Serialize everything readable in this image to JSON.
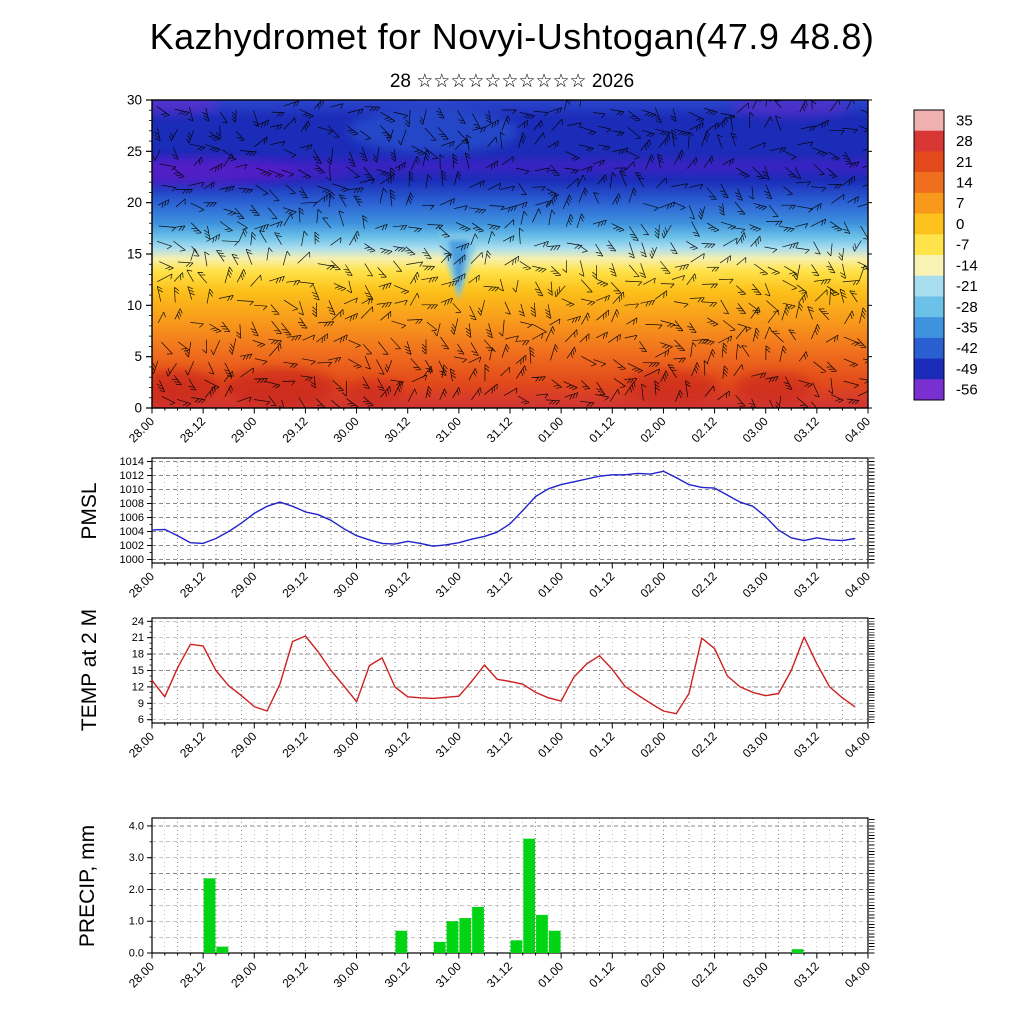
{
  "header": {
    "title": "Kazhydromet for Novyi-Ushtogan(47.9 48.8)",
    "subtitle": "28 ☆☆☆☆☆☆☆☆☆☆ 2026"
  },
  "chart_data": {
    "time_axis": {
      "tick_labels": [
        "28.00",
        "28.12",
        "29.00",
        "29.12",
        "30.00",
        "30.12",
        "31.00",
        "31.12",
        "01.00",
        "01.12",
        "02.00",
        "02.12",
        "03.00",
        "03.12",
        "04.00"
      ],
      "tick_interval_hours": 12,
      "minor_interval_hours": 3,
      "total_hours": 168
    },
    "cross_section": {
      "type": "heatmap",
      "description": "time-height temperature cross-section with wind-barb overlay",
      "ylim": [
        0,
        30
      ],
      "yticks": [
        0,
        5,
        10,
        15,
        20,
        25,
        30
      ],
      "colorbar": {
        "tick_labels": [
          "35",
          "28",
          "21",
          "14",
          "7",
          "0",
          "-7",
          "-14",
          "-21",
          "-28",
          "-35",
          "-42",
          "-49",
          "-56"
        ],
        "band_colors": [
          "#efb0b0",
          "#d93636",
          "#e2491b",
          "#f06f1e",
          "#f8991c",
          "#fcc11a",
          "#ffe34a",
          "#f8f2b4",
          "#a8ddf0",
          "#6cc1e8",
          "#3e92de",
          "#2a5fd2",
          "#1b2cb8",
          "#7a30d0"
        ]
      },
      "vertical_profile_stops": [
        {
          "offset": 0.0,
          "color": "#2c46cc"
        },
        {
          "offset": 0.06,
          "color": "#1b2cb8"
        },
        {
          "offset": 0.17,
          "color": "#1b2cb8"
        },
        {
          "offset": 0.215,
          "color": "#3a22c2"
        },
        {
          "offset": 0.26,
          "color": "#1b2cb8"
        },
        {
          "offset": 0.33,
          "color": "#2a5fd2"
        },
        {
          "offset": 0.4,
          "color": "#3e92de"
        },
        {
          "offset": 0.445,
          "color": "#6cc1e8"
        },
        {
          "offset": 0.48,
          "color": "#a8ddf0"
        },
        {
          "offset": 0.515,
          "color": "#f6f0ae"
        },
        {
          "offset": 0.555,
          "color": "#ffe34a"
        },
        {
          "offset": 0.62,
          "color": "#fcc11a"
        },
        {
          "offset": 0.72,
          "color": "#f8991c"
        },
        {
          "offset": 0.82,
          "color": "#f06f1e"
        },
        {
          "offset": 0.92,
          "color": "#e2491b"
        },
        {
          "offset": 1.0,
          "color": "#d03434"
        }
      ],
      "features": [
        {
          "name": "stratosphere-purple-band",
          "shape": "ellipse",
          "t_hours": 8,
          "height_km": 23,
          "rx_hours": 26,
          "ry_km": 1.3,
          "color": "#5a1ec8",
          "opacity": 0.8
        },
        {
          "name": "stratosphere-purple-band-ext",
          "shape": "ellipse",
          "t_hours": 36,
          "height_km": 22.8,
          "rx_hours": 12,
          "ry_km": 0.7,
          "color": "#5a1ec8",
          "opacity": 0.45
        },
        {
          "name": "purple-top-left",
          "shape": "ellipse",
          "t_hours": 5,
          "height_km": 29.6,
          "rx_hours": 11,
          "ry_km": 1.0,
          "color": "#6a28cc",
          "opacity": 0.6
        },
        {
          "name": "purple-top-right",
          "shape": "ellipse",
          "t_hours": 150,
          "height_km": 29.3,
          "rx_hours": 14,
          "ry_km": 1.0,
          "color": "#6a28cc",
          "opacity": 0.55
        },
        {
          "name": "bright-blue-upper",
          "shape": "ellipse",
          "t_hours": 66,
          "height_km": 27,
          "rx_hours": 20,
          "ry_km": 2.2,
          "color": "#2f62d8",
          "opacity": 0.5
        },
        {
          "name": "warm-surface-1",
          "shape": "ellipse",
          "t_hours": 6,
          "height_km": 2,
          "rx_hours": 10,
          "ry_km": 1.7,
          "color": "#c9251a",
          "opacity": 0.7
        },
        {
          "name": "warm-surface-2",
          "shape": "ellipse",
          "t_hours": 30,
          "height_km": 2,
          "rx_hours": 13,
          "ry_km": 1.9,
          "color": "#c9251a",
          "opacity": 0.7
        },
        {
          "name": "warm-surface-3",
          "shape": "ellipse",
          "t_hours": 52,
          "height_km": 1.5,
          "rx_hours": 7,
          "ry_km": 1.2,
          "color": "#c9251a",
          "opacity": 0.55
        },
        {
          "name": "warm-surface-4",
          "shape": "ellipse",
          "t_hours": 122,
          "height_km": 2,
          "rx_hours": 11,
          "ry_km": 1.7,
          "color": "#c9251a",
          "opacity": 0.6
        },
        {
          "name": "warm-surface-5",
          "shape": "ellipse",
          "t_hours": 146,
          "height_km": 2,
          "rx_hours": 9,
          "ry_km": 1.5,
          "color": "#c9251a",
          "opacity": 0.6
        },
        {
          "name": "cold-dip",
          "shape": "wedge",
          "t_hours": 72,
          "top_km": 17,
          "bottom_km": 10.5,
          "half_width_hours": 5,
          "color": "#7fc8ea",
          "opacity": 0.85
        },
        {
          "name": "cold-dip-core",
          "shape": "wedge",
          "t_hours": 72,
          "top_km": 16.3,
          "bottom_km": 11.3,
          "half_width_hours": 2.4,
          "color": "#3e92de",
          "opacity": 0.8
        }
      ]
    },
    "pmsl": {
      "type": "line",
      "label": "PMSL",
      "color": "#2222cc",
      "ylim": [
        999.5,
        1014.5
      ],
      "yticks": [
        1000,
        1002,
        1004,
        1006,
        1008,
        1010,
        1012,
        1014
      ],
      "step_hours": 3,
      "start_hour": 0,
      "values": [
        1004.2,
        1004.3,
        1003.4,
        1002.4,
        1002.3,
        1003.0,
        1004.0,
        1005.2,
        1006.6,
        1007.6,
        1008.2,
        1007.6,
        1006.8,
        1006.4,
        1005.6,
        1004.4,
        1003.4,
        1002.8,
        1002.3,
        1002.2,
        1002.6,
        1002.3,
        1001.9,
        1002.1,
        1002.4,
        1002.9,
        1003.3,
        1003.9,
        1005.1,
        1007.0,
        1009.0,
        1010.1,
        1010.7,
        1011.1,
        1011.5,
        1011.9,
        1012.1,
        1012.1,
        1012.3,
        1012.2,
        1012.6,
        1011.7,
        1010.7,
        1010.3,
        1010.2,
        1009.2,
        1008.2,
        1007.6,
        1006.1,
        1004.2,
        1003.1,
        1002.7,
        1003.1,
        1002.8,
        1002.7,
        1003.0
      ]
    },
    "temp2m": {
      "type": "line",
      "label": "TEMP at 2 M",
      "color": "#cc2020",
      "ylim": [
        5.4,
        24.6
      ],
      "yticks": [
        6,
        9,
        12,
        15,
        18,
        21,
        24
      ],
      "step_hours": 3,
      "start_hour": 0,
      "values": [
        13.2,
        10.2,
        15.5,
        19.8,
        19.5,
        15.0,
        12.2,
        10.4,
        8.4,
        7.6,
        12.5,
        20.3,
        21.3,
        18.4,
        15.0,
        12.2,
        9.3,
        15.9,
        17.3,
        12.0,
        10.2,
        10.0,
        9.9,
        10.1,
        10.3,
        13.0,
        16.0,
        13.4,
        13.0,
        12.5,
        11.0,
        10.0,
        9.4,
        13.8,
        16.2,
        17.7,
        15.2,
        12.1,
        10.5,
        9.0,
        7.6,
        7.1,
        10.8,
        20.9,
        19.0,
        14.0,
        12.0,
        11.0,
        10.4,
        10.8,
        15.0,
        21.1,
        16.2,
        12.0,
        10.0,
        8.3
      ]
    },
    "precip": {
      "type": "bar",
      "label": "PRECIP, mm",
      "color": "#00d414",
      "ylim": [
        0,
        4.25
      ],
      "yticks": [
        0,
        1,
        2,
        3,
        4
      ],
      "ytick_decimals": 1,
      "step_hours": 3,
      "start_hour": 0,
      "values": [
        0,
        0,
        0,
        0,
        2.35,
        0.2,
        0,
        0,
        0,
        0,
        0,
        0,
        0,
        0,
        0,
        0,
        0,
        0,
        0,
        0.7,
        0,
        0,
        0.35,
        1.0,
        1.1,
        1.45,
        0,
        0,
        0.4,
        3.6,
        1.2,
        0.7,
        0,
        0,
        0,
        0,
        0,
        0,
        0,
        0,
        0,
        0,
        0,
        0,
        0,
        0,
        0,
        0,
        0,
        0,
        0.12,
        0,
        0,
        0,
        0,
        0
      ]
    }
  }
}
